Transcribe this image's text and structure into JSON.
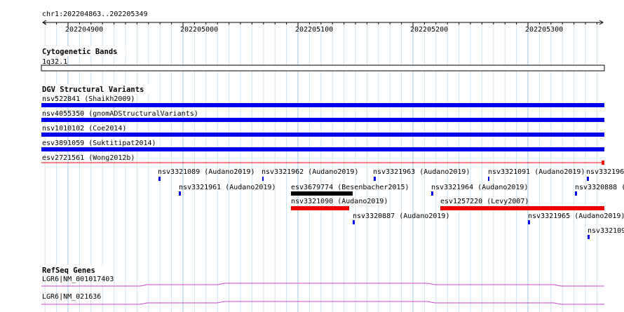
{
  "ruler": {
    "location": "chr1:202204863..202205349",
    "ticks": [
      "202204900",
      "202205000",
      "202205100",
      "202205200",
      "202205300"
    ]
  },
  "tracks": {
    "cytoband": {
      "title": "Cytogenetic Bands",
      "band_label": "1q32.1"
    },
    "dgv": {
      "title": "DGV Structural Variants",
      "full_span_features": [
        {
          "label": "nsv522841 (Shaikh2009)",
          "color": "#0000ee"
        },
        {
          "label": "nsv4055350 (gnomADStructuralVariants)",
          "color": "#0000ee"
        },
        {
          "label": "nsv1010102 (Coe2014)",
          "color": "#0000ee"
        },
        {
          "label": "esv3891059 (Suktitipat2014)",
          "color": "#0000ee"
        },
        {
          "label": "esv2721561 (Wong2012b)",
          "color": "#ee0000"
        }
      ],
      "small_features": [
        {
          "label": "nsv3321089 (Audano2019)",
          "color": "#0000ee"
        },
        {
          "label": "nsv3321962 (Audano2019)",
          "color": "#0000ee"
        },
        {
          "label": "nsv3321963 (Audano2019)",
          "color": "#0000ee"
        },
        {
          "label": "nsv3321091 (Audano2019)",
          "color": "#0000ee"
        },
        {
          "label": "nsv332196",
          "color": "#0000ee"
        },
        {
          "label": "nsv3321961 (Audano2019)",
          "color": "#0000ee"
        },
        {
          "label": "esv3679774 (Besenbacher2015)",
          "color": "#000000"
        },
        {
          "label": "nsv3321964 (Audano2019)",
          "color": "#0000ee"
        },
        {
          "label": "nsv3320888 (",
          "color": "#0000ee"
        },
        {
          "label": "nsv3321090 (Audano2019)",
          "color": "#ee0000"
        },
        {
          "label": "esv1257220 (Levy2007)",
          "color": "#ee0000"
        },
        {
          "label": "nsv3320887 (Audano2019)",
          "color": "#0000ee"
        },
        {
          "label": "nsv3321965 (Audano2019)",
          "color": "#0000ee"
        },
        {
          "label": "nsv332109",
          "color": "#0000ee"
        }
      ]
    },
    "refseq": {
      "title": "RefSeq Genes",
      "genes": [
        {
          "label": "LGR6|NM_001017403",
          "color": "#cc44cc"
        },
        {
          "label": "LGR6|NM_021636",
          "color": "#cc44cc"
        }
      ]
    }
  }
}
